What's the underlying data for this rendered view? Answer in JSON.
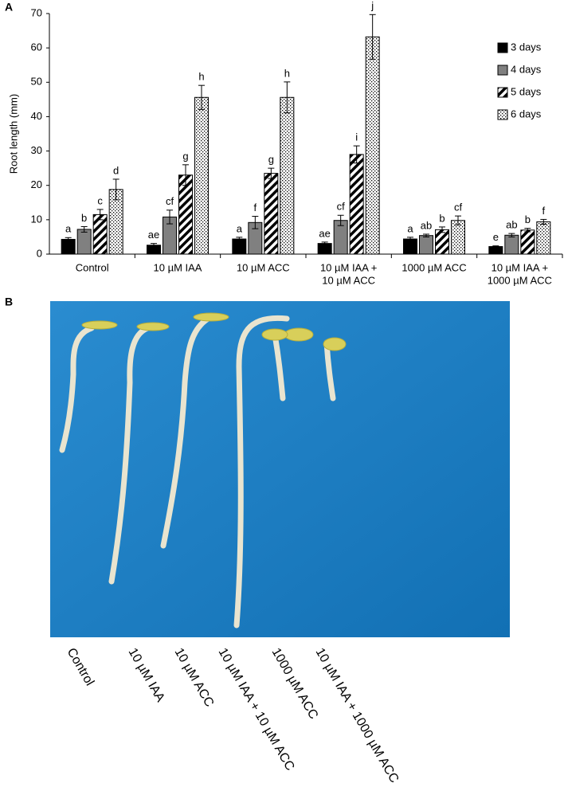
{
  "chart_data": {
    "type": "bar",
    "panel": "A",
    "ylabel": "Root length (mm)",
    "categories": [
      "Control",
      "10 µM IAA",
      "10 µM ACC",
      [
        "10 µM IAA +",
        "10 µM ACC"
      ],
      "1000 µM ACC",
      [
        "10 µM IAA +",
        "1000 µM ACC"
      ]
    ],
    "series": [
      {
        "name": "3 days",
        "color": "#000000",
        "pattern": "solid",
        "values": [
          4.3,
          2.6,
          4.4,
          3.1,
          4.4,
          2.2
        ],
        "errors": [
          0.5,
          0.5,
          0.5,
          0.4,
          0.5,
          0.2
        ],
        "value_labels": [
          "a",
          "ae",
          "a",
          "ae",
          "a",
          "e"
        ]
      },
      {
        "name": "4 days",
        "color": "#808080",
        "pattern": "solid",
        "values": [
          7.2,
          10.8,
          9.2,
          9.8,
          5.4,
          5.5
        ],
        "errors": [
          0.8,
          2.0,
          1.8,
          1.5,
          0.4,
          0.5
        ],
        "value_labels": [
          "b",
          "cf",
          "f",
          "cf",
          "ab",
          "ab"
        ]
      },
      {
        "name": "5 days",
        "color": "#000000",
        "pattern": "hatch",
        "values": [
          11.5,
          23.0,
          23.5,
          29.0,
          7.1,
          7.0
        ],
        "errors": [
          1.5,
          3.0,
          1.5,
          2.5,
          0.8,
          0.5
        ],
        "value_labels": [
          "c",
          "g",
          "g",
          "i",
          "b",
          "b"
        ]
      },
      {
        "name": "6 days",
        "color": "#000000",
        "pattern": "dots",
        "values": [
          18.8,
          45.6,
          45.6,
          63.2,
          9.8,
          9.4
        ],
        "errors": [
          3.0,
          3.5,
          4.5,
          6.5,
          1.3,
          0.7
        ],
        "value_labels": [
          "d",
          "h",
          "h",
          "j",
          "cf",
          "f"
        ]
      }
    ],
    "ylim": [
      0,
      70
    ],
    "yticks": [
      0,
      10,
      20,
      30,
      40,
      50,
      60,
      70
    ],
    "grid": false,
    "legend": "upper right"
  },
  "photo": {
    "panel": "B",
    "labels": [
      "Control",
      "10 µM IAA",
      "10 µM ACC",
      "10 µM IAA + 10 µM ACC",
      "1000 µM ACC",
      "10 µM IAA + 1000 µM ACC"
    ]
  }
}
